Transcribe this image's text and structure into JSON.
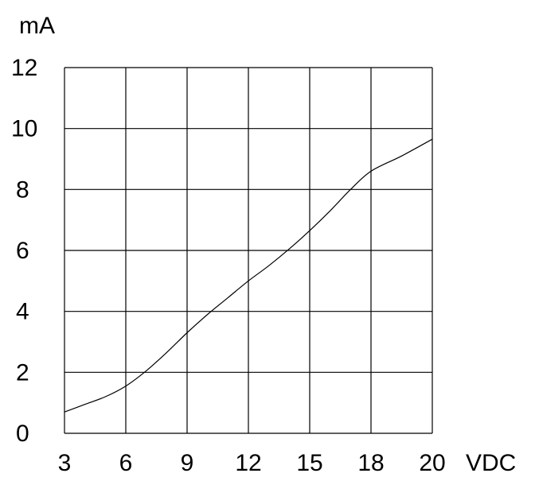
{
  "chart_data": {
    "type": "line",
    "title": "",
    "xlabel": "VDC",
    "ylabel": "mA",
    "x_ticks": [
      "3",
      "6",
      "9",
      "12",
      "15",
      "18",
      "20"
    ],
    "y_ticks": [
      "0",
      "2",
      "4",
      "6",
      "8",
      "10",
      "12"
    ],
    "ylim": [
      0,
      12
    ],
    "grid": true,
    "legend": "none",
    "series": [
      {
        "x": [
          3,
          4,
          5,
          6,
          7,
          8,
          9,
          10,
          11,
          12,
          13,
          14,
          15,
          16,
          17,
          18,
          19,
          20
        ],
        "y": [
          0.7,
          0.95,
          1.2,
          1.55,
          2.05,
          2.65,
          3.3,
          3.9,
          4.45,
          5.0,
          5.5,
          6.05,
          6.65,
          7.3,
          8.0,
          8.6,
          9.1,
          9.65
        ]
      }
    ],
    "colors": {
      "line": "#000000",
      "grid": "#000000",
      "background": "#ffffff"
    }
  }
}
